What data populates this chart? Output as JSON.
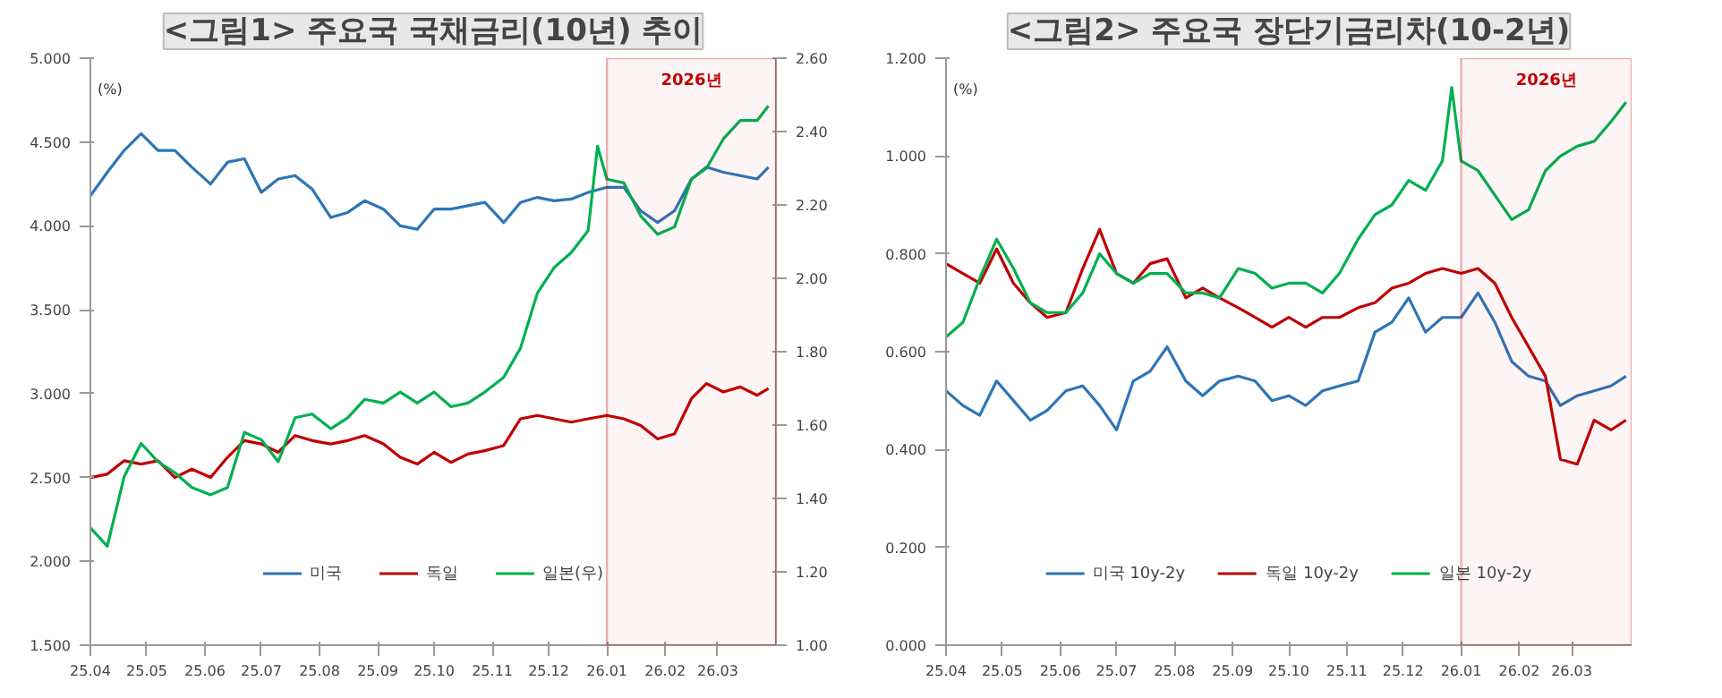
{
  "chart_data": [
    {
      "type": "line",
      "title": "<그림1> 주요국 국채금리(10년) 추이",
      "ylabel": "(%)",
      "x": [
        "2025-04-01",
        "2025-04-10",
        "2025-04-19",
        "2025-04-28",
        "2025-05-07",
        "2025-05-16",
        "2025-05-25",
        "2025-06-04",
        "2025-06-13",
        "2025-06-22",
        "2025-07-01",
        "2025-07-10",
        "2025-07-19",
        "2025-07-28",
        "2025-08-07",
        "2025-08-16",
        "2025-08-25",
        "2025-09-04",
        "2025-09-13",
        "2025-09-22",
        "2025-10-01",
        "2025-10-10",
        "2025-10-19",
        "2025-10-28",
        "2025-11-07",
        "2025-11-16",
        "2025-11-25",
        "2025-12-04",
        "2025-12-13",
        "2025-12-22",
        "2026-01-01",
        "2026-01-10",
        "2026-01-19",
        "2026-01-28",
        "2026-02-06",
        "2026-02-15",
        "2026-02-23",
        "2026-03-04",
        "2026-03-13",
        "2026-03-22",
        "2026-03-28"
      ],
      "series": [
        {
          "name": "미국",
          "color": "#2e75b6",
          "values": [
            4.18,
            4.32,
            4.45,
            4.55,
            4.45,
            4.45,
            4.35,
            4.25,
            4.38,
            4.4,
            4.2,
            4.28,
            4.3,
            4.22,
            4.05,
            4.08,
            4.15,
            4.1,
            4.0,
            3.98,
            4.1,
            4.1,
            4.12,
            4.14,
            4.02,
            4.14,
            4.17,
            4.15,
            4.16,
            4.2,
            4.23,
            4.23,
            4.09,
            4.02,
            4.09,
            4.28,
            4.35,
            4.32,
            4.3,
            4.28,
            4.35
          ]
        },
        {
          "name": "독일",
          "color": "#c00000",
          "values": [
            2.5,
            2.52,
            2.6,
            2.58,
            2.6,
            2.5,
            2.55,
            2.5,
            2.62,
            2.72,
            2.7,
            2.65,
            2.75,
            2.72,
            2.7,
            2.72,
            2.75,
            2.7,
            2.62,
            2.58,
            2.65,
            2.59,
            2.64,
            2.66,
            2.69,
            2.85,
            2.87,
            2.85,
            2.83,
            2.85,
            2.87,
            2.85,
            2.81,
            2.73,
            2.76,
            2.97,
            3.06,
            3.01,
            3.04,
            2.99,
            3.03
          ]
        },
        {
          "name": "일본(우)",
          "color": "#00b050",
          "axis": "y2",
          "x": [
            "2025-04-01",
            "2025-04-10",
            "2025-04-19",
            "2025-04-28",
            "2025-05-07",
            "2025-05-16",
            "2025-05-25",
            "2025-06-04",
            "2025-06-13",
            "2025-06-22",
            "2025-07-01",
            "2025-07-10",
            "2025-07-19",
            "2025-07-28",
            "2025-08-07",
            "2025-08-16",
            "2025-08-25",
            "2025-09-04",
            "2025-09-13",
            "2025-09-22",
            "2025-10-01",
            "2025-10-10",
            "2025-10-19",
            "2025-10-28",
            "2025-11-07",
            "2025-11-16",
            "2025-11-25",
            "2025-12-04",
            "2025-12-13",
            "2025-12-22",
            "2025-12-27",
            "2026-01-01",
            "2026-01-10",
            "2026-01-19",
            "2026-01-28",
            "2026-02-06",
            "2026-02-15",
            "2026-02-23",
            "2026-03-04",
            "2026-03-13",
            "2026-03-22",
            "2026-03-28"
          ],
          "values": [
            1.32,
            1.27,
            1.46,
            1.55,
            1.5,
            1.47,
            1.43,
            1.41,
            1.43,
            1.58,
            1.56,
            1.5,
            1.62,
            1.63,
            1.59,
            1.62,
            1.67,
            1.66,
            1.69,
            1.66,
            1.69,
            1.65,
            1.66,
            1.69,
            1.73,
            1.81,
            1.96,
            2.03,
            2.07,
            2.13,
            2.36,
            2.27,
            2.26,
            2.17,
            2.12,
            2.14,
            2.27,
            2.3,
            2.38,
            2.43,
            2.43,
            2.47
          ]
        }
      ],
      "xlim": [
        "2025-04-01",
        "2026-04-01"
      ],
      "xticks": [
        {
          "value": "2025-04-01",
          "label": "25.04"
        },
        {
          "value": "2025-05-01",
          "label": "25.05"
        },
        {
          "value": "2025-06-01",
          "label": "25.06"
        },
        {
          "value": "2025-07-01",
          "label": "25.07"
        },
        {
          "value": "2025-08-01",
          "label": "25.08"
        },
        {
          "value": "2025-09-01",
          "label": "25.09"
        },
        {
          "value": "2025-10-01",
          "label": "25.10"
        },
        {
          "value": "2025-11-01",
          "label": "25.11"
        },
        {
          "value": "2025-12-01",
          "label": "25.12"
        },
        {
          "value": "2026-01-01",
          "label": "26.01"
        },
        {
          "value": "2026-02-01",
          "label": "26.02"
        },
        {
          "value": "2026-03-01",
          "label": "26.03"
        }
      ],
      "ylim": [
        1.5,
        5.0
      ],
      "yticks": [
        {
          "value": 1.5,
          "label": "1.500"
        },
        {
          "value": 2.0,
          "label": "2.000"
        },
        {
          "value": 2.5,
          "label": "2.500"
        },
        {
          "value": 3.0,
          "label": "3.000"
        },
        {
          "value": 3.5,
          "label": "3.500"
        },
        {
          "value": 4.0,
          "label": "4.000"
        },
        {
          "value": 4.5,
          "label": "4.500"
        },
        {
          "value": 5.0,
          "label": "5.000"
        }
      ],
      "y2lim": [
        1.0,
        2.6
      ],
      "y2ticks": [
        {
          "value": 1.0,
          "label": "1.00"
        },
        {
          "value": 1.2,
          "label": "1.20"
        },
        {
          "value": 1.4,
          "label": "1.40"
        },
        {
          "value": 1.6,
          "label": "1.60"
        },
        {
          "value": 1.8,
          "label": "1.80"
        },
        {
          "value": 2.0,
          "label": "2.00"
        },
        {
          "value": 2.2,
          "label": "2.20"
        },
        {
          "value": 2.4,
          "label": "2.40"
        },
        {
          "value": 2.6,
          "label": "2.60"
        }
      ],
      "bands": [
        {
          "axis": "x",
          "from": "2026-01-01",
          "to": "2026-04-01",
          "label": "2026년",
          "color": "#c00000"
        }
      ],
      "legend": "bottom",
      "grid": false,
      "line_style": "solid"
    },
    {
      "type": "line",
      "title": "<그림2> 주요국 장단기금리차(10-2년)",
      "ylabel": "(%)",
      "x": [
        "2025-04-01",
        "2025-04-10",
        "2025-04-19",
        "2025-04-28",
        "2025-05-07",
        "2025-05-16",
        "2025-05-25",
        "2025-06-04",
        "2025-06-13",
        "2025-06-22",
        "2025-07-01",
        "2025-07-10",
        "2025-07-19",
        "2025-07-28",
        "2025-08-07",
        "2025-08-16",
        "2025-08-25",
        "2025-09-04",
        "2025-09-13",
        "2025-09-22",
        "2025-10-01",
        "2025-10-10",
        "2025-10-19",
        "2025-10-28",
        "2025-11-07",
        "2025-11-16",
        "2025-11-25",
        "2025-12-04",
        "2025-12-13",
        "2025-12-22",
        "2026-01-01",
        "2026-01-10",
        "2026-01-19",
        "2026-01-28",
        "2026-02-06",
        "2026-02-15",
        "2026-02-23",
        "2026-03-04",
        "2026-03-13",
        "2026-03-22",
        "2026-03-30"
      ],
      "series": [
        {
          "name": "미국 10y-2y",
          "color": "#2e75b6",
          "values": [
            0.52,
            0.49,
            0.47,
            0.54,
            0.5,
            0.46,
            0.48,
            0.52,
            0.53,
            0.49,
            0.44,
            0.54,
            0.56,
            0.61,
            0.54,
            0.51,
            0.54,
            0.55,
            0.54,
            0.5,
            0.51,
            0.49,
            0.52,
            0.53,
            0.54,
            0.64,
            0.66,
            0.71,
            0.64,
            0.67,
            0.67,
            0.72,
            0.66,
            0.58,
            0.55,
            0.54,
            0.49,
            0.51,
            0.52,
            0.53,
            0.55
          ]
        },
        {
          "name": "독일 10y-2y",
          "color": "#c00000",
          "values": [
            0.78,
            0.76,
            0.74,
            0.81,
            0.74,
            0.7,
            0.67,
            0.68,
            0.77,
            0.85,
            0.76,
            0.74,
            0.78,
            0.79,
            0.71,
            0.73,
            0.71,
            0.69,
            0.67,
            0.65,
            0.67,
            0.65,
            0.67,
            0.67,
            0.69,
            0.7,
            0.73,
            0.74,
            0.76,
            0.77,
            0.76,
            0.77,
            0.74,
            0.67,
            0.61,
            0.55,
            0.38,
            0.37,
            0.46,
            0.44,
            0.46
          ]
        },
        {
          "name": "일본 10y-2y",
          "color": "#00b050",
          "x": [
            "2025-04-01",
            "2025-04-10",
            "2025-04-19",
            "2025-04-28",
            "2025-05-07",
            "2025-05-16",
            "2025-05-25",
            "2025-06-04",
            "2025-06-13",
            "2025-06-22",
            "2025-07-01",
            "2025-07-10",
            "2025-07-19",
            "2025-07-28",
            "2025-08-07",
            "2025-08-16",
            "2025-08-25",
            "2025-09-04",
            "2025-09-13",
            "2025-09-22",
            "2025-10-01",
            "2025-10-10",
            "2025-10-19",
            "2025-10-28",
            "2025-11-07",
            "2025-11-16",
            "2025-11-25",
            "2025-12-04",
            "2025-12-13",
            "2025-12-22",
            "2025-12-27",
            "2026-01-01",
            "2026-01-10",
            "2026-01-19",
            "2026-01-28",
            "2026-02-06",
            "2026-02-15",
            "2026-02-23",
            "2026-03-04",
            "2026-03-13",
            "2026-03-22",
            "2026-03-30"
          ],
          "values": [
            0.63,
            0.66,
            0.75,
            0.83,
            0.77,
            0.7,
            0.68,
            0.68,
            0.72,
            0.8,
            0.76,
            0.74,
            0.76,
            0.76,
            0.72,
            0.72,
            0.71,
            0.77,
            0.76,
            0.73,
            0.74,
            0.74,
            0.72,
            0.76,
            0.83,
            0.88,
            0.9,
            0.95,
            0.93,
            0.99,
            1.14,
            0.99,
            0.97,
            0.92,
            0.87,
            0.89,
            0.97,
            1.0,
            1.02,
            1.03,
            1.07,
            1.11
          ]
        }
      ],
      "xlim": [
        "2025-04-01",
        "2026-04-02"
      ],
      "xticks": [
        {
          "value": "2025-04-01",
          "label": "25.04"
        },
        {
          "value": "2025-05-01",
          "label": "25.05"
        },
        {
          "value": "2025-06-01",
          "label": "25.06"
        },
        {
          "value": "2025-07-01",
          "label": "25.07"
        },
        {
          "value": "2025-08-01",
          "label": "25.08"
        },
        {
          "value": "2025-09-01",
          "label": "25.09"
        },
        {
          "value": "2025-10-01",
          "label": "25.10"
        },
        {
          "value": "2025-11-01",
          "label": "25.11"
        },
        {
          "value": "2025-12-01",
          "label": "25.12"
        },
        {
          "value": "2026-01-01",
          "label": "26.01"
        },
        {
          "value": "2026-02-01",
          "label": "26.02"
        },
        {
          "value": "2026-03-01",
          "label": "26.03"
        }
      ],
      "ylim": [
        0,
        1.2
      ],
      "yticks": [
        {
          "value": 0,
          "label": "0.000"
        },
        {
          "value": 0.2,
          "label": "0.200"
        },
        {
          "value": 0.4,
          "label": "0.400"
        },
        {
          "value": 0.6,
          "label": "0.600"
        },
        {
          "value": 0.8,
          "label": "0.800"
        },
        {
          "value": 1.0,
          "label": "1.000"
        },
        {
          "value": 1.2,
          "label": "1.200"
        }
      ],
      "bands": [
        {
          "axis": "x",
          "from": "2026-01-01",
          "to": "2026-04-02",
          "label": "2026년",
          "color": "#c00000"
        }
      ],
      "legend": "bottom",
      "grid": false,
      "line_style": "solid"
    }
  ]
}
